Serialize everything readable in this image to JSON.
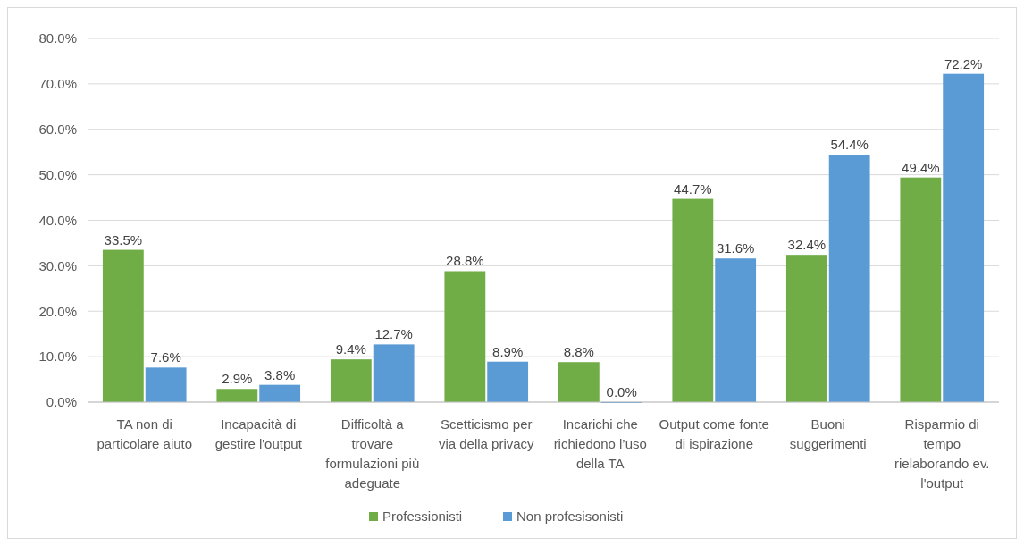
{
  "chart_data": {
    "type": "bar",
    "categories": [
      "TA non di particolare aiuto",
      "Incapacità di gestire l'output",
      "Difficoltà a trovare formulazioni più adeguate",
      "Scetticismo per via della privacy",
      "Incarichi che richiedono l’uso della TA",
      "Output come fonte di ispirazione",
      "Buoni suggerimenti",
      "Risparmio di tempo rielaborando ev. l'output"
    ],
    "series": [
      {
        "name": "Professionisti",
        "color": "#70ad47",
        "values": [
          33.5,
          2.9,
          9.4,
          28.8,
          8.8,
          44.7,
          32.4,
          49.4
        ],
        "value_labels": [
          "33.5%",
          "2.9%",
          "9.4%",
          "28.8%",
          "8.8%",
          "44.7%",
          "32.4%",
          "49.4%"
        ]
      },
      {
        "name": "Non profesisonisti",
        "color": "#5b9bd5",
        "values": [
          7.6,
          3.8,
          12.7,
          8.9,
          0.0,
          31.6,
          54.4,
          72.2
        ],
        "value_labels": [
          "7.6%",
          "3.8%",
          "12.7%",
          "8.9%",
          "0.0%",
          "31.6%",
          "54.4%",
          "72.2%"
        ]
      }
    ],
    "ylim": [
      0,
      80
    ],
    "yticks": [
      {
        "value": 0,
        "label": "0.0%"
      },
      {
        "value": 10,
        "label": "10.0%"
      },
      {
        "value": 20,
        "label": "20.0%"
      },
      {
        "value": 30,
        "label": "30.0%"
      },
      {
        "value": 40,
        "label": "40.0%"
      },
      {
        "value": 50,
        "label": "50.0%"
      },
      {
        "value": 60,
        "label": "60.0%"
      },
      {
        "value": 70,
        "label": "70.0%"
      },
      {
        "value": 80,
        "label": "80.0%"
      }
    ],
    "grid": "y",
    "legend": "bottom"
  }
}
